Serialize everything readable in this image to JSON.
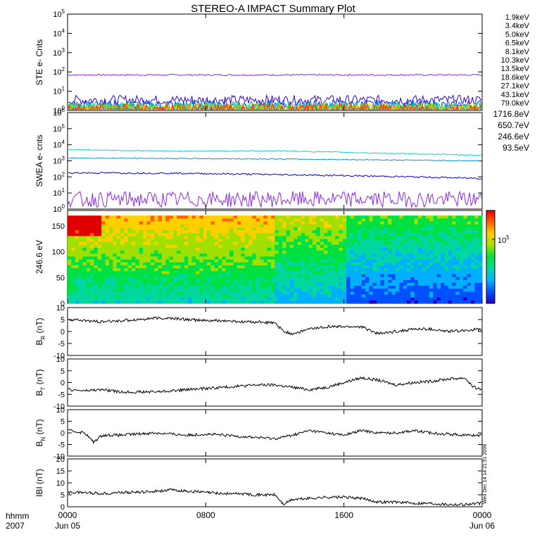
{
  "chart_data": {
    "type": "line",
    "title": "STEREO-A IMPACT Summary Plot",
    "x_axis": {
      "ticks": [
        "0000",
        "0800",
        "1600",
        "0000"
      ],
      "date_labels": [
        "Jun 05",
        "Jun 06"
      ],
      "row_label": "hhmm",
      "year_label": "2007",
      "range_hours": [
        0,
        24
      ]
    },
    "stamp": "Wed Dec 14 14:21:51 2008",
    "panels": [
      {
        "id": "ste",
        "ylabel": "STE e- Cnts",
        "scale": "log",
        "ylim": [
          1,
          100000
        ],
        "y_ticks": [
          {
            "base": "10",
            "exp": "5"
          },
          {
            "base": "10",
            "exp": "4"
          },
          {
            "base": "10",
            "exp": "3"
          },
          {
            "base": "10",
            "exp": "2"
          },
          {
            "base": "10",
            "exp": "1"
          },
          {
            "base": "10",
            "exp": "0"
          }
        ],
        "series": [
          {
            "name": "1.9keV",
            "color": "#8a2be2",
            "level": 70,
            "noise": 0.04
          },
          {
            "name": "3.4keV",
            "color": "#3a00c8",
            "level": 3.5,
            "noise": 0.25
          },
          {
            "name": "5.0keV",
            "color": "#0038ff",
            "level": 1.8,
            "noise": 0.3
          },
          {
            "name": "6.5keV",
            "color": "#00a0e0",
            "level": 1.4,
            "noise": 0.35
          },
          {
            "name": "8.1keV",
            "color": "#00d8c8",
            "level": 1.2,
            "noise": 0.35
          },
          {
            "name": "10.3keV",
            "color": "#00e060",
            "level": 1.1,
            "noise": 0.35
          },
          {
            "name": "13.5keV",
            "color": "#40d000",
            "level": 1.05,
            "noise": 0.35
          },
          {
            "name": "18.6keV",
            "color": "#a0d800",
            "level": 1.03,
            "noise": 0.35
          },
          {
            "name": "27.1keV",
            "color": "#f0c800",
            "level": 1.02,
            "noise": 0.35
          },
          {
            "name": "43.1keV",
            "color": "#ff8000",
            "level": 1.01,
            "noise": 0.35
          },
          {
            "name": "79.0keV",
            "color": "#ff2000",
            "level": 1.0,
            "noise": 0.35
          }
        ]
      },
      {
        "id": "swea",
        "ylabel": "SWEA e- cnts",
        "scale": "log",
        "ylim": [
          1,
          1000000
        ],
        "y_ticks": [
          {
            "base": "10",
            "exp": "6"
          },
          {
            "base": "10",
            "exp": "5"
          },
          {
            "base": "10",
            "exp": "4"
          },
          {
            "base": "10",
            "exp": "3"
          },
          {
            "base": "10",
            "exp": "2"
          },
          {
            "base": "10",
            "exp": "1"
          },
          {
            "base": "10",
            "exp": "0"
          }
        ],
        "series": [
          {
            "name": "1716.8eV",
            "color": "#8a2be2",
            "x": [
              0,
              24
            ],
            "y": [
              4,
              4
            ],
            "noise": 0.5
          },
          {
            "name": "650.7eV",
            "color": "#0000d0",
            "x": [
              0,
              6,
              12,
              18,
              24
            ],
            "y": [
              180,
              170,
              140,
              110,
              80
            ],
            "noise": 0.05
          },
          {
            "name": "246.6eV",
            "color": "#0096e0",
            "x": [
              0,
              6,
              12,
              18,
              24
            ],
            "y": [
              1500,
              1400,
              1300,
              1150,
              1000
            ],
            "noise": 0.03
          },
          {
            "name": "93.5eV",
            "color": "#00d8c8",
            "x": [
              0,
              6,
              12,
              18,
              24
            ],
            "y": [
              5000,
              4000,
              4200,
              3000,
              2200
            ],
            "noise": 0.03
          }
        ]
      },
      {
        "id": "pad",
        "type": "heatmap",
        "ylabel": "246.6 eV",
        "ylim": [
          0,
          180
        ],
        "y_ticks": [
          "150",
          "100",
          "50",
          "0"
        ],
        "colorbar_tick": {
          "base": "10",
          "exp": "5"
        },
        "colormap": [
          "#2000c0",
          "#0050ff",
          "#00b0ff",
          "#00d8a0",
          "#00e040",
          "#a0e000",
          "#ffd000",
          "#ff6000",
          "#e00000"
        ]
      },
      {
        "id": "br",
        "ylabel": "B",
        "ylabel_sub": "R",
        "unit": "(nT)",
        "ylim": [
          -10,
          10
        ],
        "y_ticks": [
          "10",
          "5",
          "0",
          "-5",
          "-10"
        ],
        "x": [
          0,
          1,
          2,
          3,
          4,
          5,
          6,
          7,
          8,
          9,
          10,
          11,
          12,
          12.5,
          13,
          14,
          15,
          16,
          17,
          18,
          19,
          20,
          21,
          22,
          23,
          24
        ],
        "y": [
          5,
          4.5,
          4,
          4.5,
          5,
          5.5,
          5.5,
          5,
          4.5,
          4.5,
          4,
          4,
          3.5,
          0,
          -1,
          1,
          2,
          2,
          2,
          -1,
          0,
          1,
          1,
          0,
          0.5,
          1
        ]
      },
      {
        "id": "bt",
        "ylabel": "B",
        "ylabel_sub": "T",
        "unit": "(nT)",
        "ylim": [
          -10,
          10
        ],
        "y_ticks": [
          "10",
          "5",
          "0",
          "-5",
          "-10"
        ],
        "x": [
          0,
          1,
          2,
          3,
          4,
          5,
          6,
          7,
          8,
          9,
          10,
          11,
          12,
          13,
          14,
          15,
          16,
          17,
          18,
          19,
          20,
          21,
          22,
          23,
          23.5,
          24
        ],
        "y": [
          -3,
          -3.5,
          -3,
          -4,
          -4,
          -4,
          -3.5,
          -3,
          -2.5,
          -2,
          -1.5,
          -1,
          -1,
          -2,
          -3,
          -2,
          0,
          2,
          1,
          -1,
          0,
          0.5,
          1.5,
          2,
          -2,
          -3
        ]
      },
      {
        "id": "bn",
        "ylabel": "B",
        "ylabel_sub": "N",
        "unit": "(nT)",
        "ylim": [
          -10,
          10
        ],
        "y_ticks": [
          "10",
          "5",
          "0",
          "-5",
          "-10"
        ],
        "x": [
          0,
          1,
          1.5,
          2,
          3,
          4,
          5,
          6,
          7,
          8,
          9,
          10,
          11,
          12,
          13,
          14,
          15,
          16,
          17,
          18,
          19,
          20,
          21,
          22,
          23,
          24
        ],
        "y": [
          1,
          0,
          -4,
          -1,
          -1,
          -0.5,
          0,
          -0.5,
          -1,
          -0.5,
          -1,
          -1.5,
          -2,
          -2.5,
          -1,
          1,
          0,
          -1,
          1,
          0,
          0,
          1,
          0,
          -0.5,
          -1,
          -1
        ]
      },
      {
        "id": "bmag",
        "ylabel": "IBI",
        "unit": "(nT)",
        "ylim": [
          0,
          20
        ],
        "y_ticks": [
          "20",
          "15",
          "10",
          "5",
          "0"
        ],
        "x": [
          0,
          1,
          2,
          3,
          4,
          5,
          6,
          7,
          8,
          9,
          10,
          11,
          12,
          12.5,
          13,
          14,
          15,
          16,
          17,
          18,
          19,
          20,
          21,
          22,
          23,
          24
        ],
        "y": [
          6,
          6,
          5.5,
          6,
          6,
          6.5,
          7,
          6.5,
          6,
          5.5,
          5.5,
          5,
          5,
          1,
          3,
          3.5,
          4,
          4,
          3.5,
          2,
          2,
          1.5,
          1.5,
          1,
          1,
          1.5
        ]
      }
    ]
  }
}
